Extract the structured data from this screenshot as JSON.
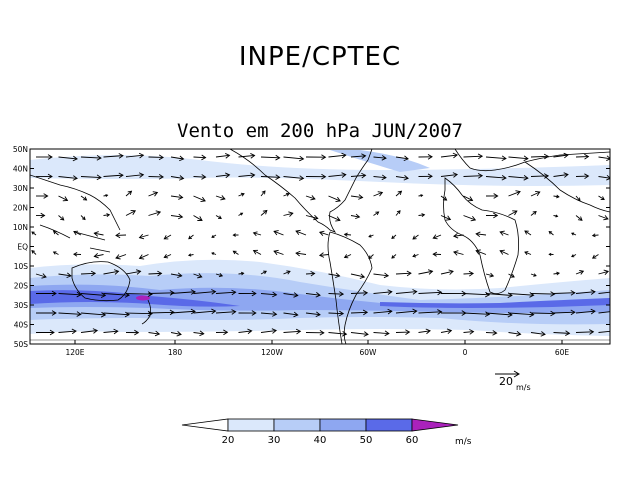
{
  "header": {
    "title": "INPE/CPTEC"
  },
  "map": {
    "title": "Vento em 200 hPa JUN/2007",
    "lat_labels": [
      "50N",
      "40N",
      "30N",
      "20N",
      "10N",
      "EQ",
      "10S",
      "20S",
      "30S",
      "40S",
      "50S"
    ],
    "lon_labels": [
      "120E",
      "180",
      "120W",
      "60W",
      "0",
      "60E"
    ],
    "reference_vector": {
      "value": "20",
      "unit": "m/s"
    },
    "colorbar": {
      "levels": [
        "20",
        "30",
        "40",
        "50",
        "60"
      ],
      "unit": "m/s",
      "colors": [
        "#ffffff",
        "#dbe8fb",
        "#b7cdf7",
        "#8ea7f1",
        "#5a6ae8",
        "#aa22bb"
      ]
    },
    "colors": {
      "land_outline": "#000000",
      "arrows": "#000000"
    }
  }
}
